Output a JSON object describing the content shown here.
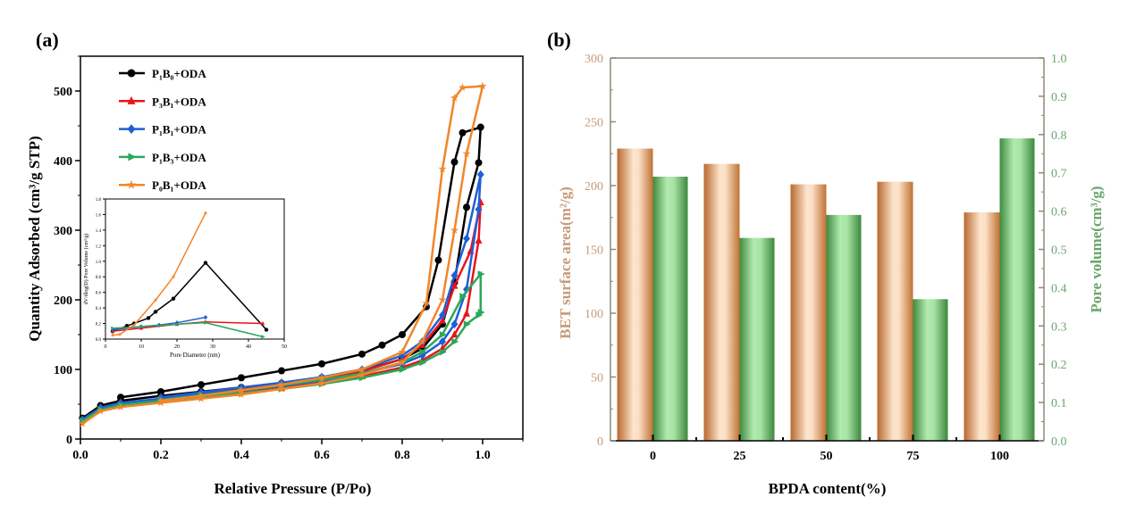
{
  "chart_data": [
    {
      "panel_label": "(a)",
      "type": "line",
      "xlabel": "Relative Pressure (P/Po)",
      "ylabel": "Quantity Adsorbed (cm³/g STP)",
      "xlim": [
        0,
        1.1
      ],
      "ylim": [
        0,
        550
      ],
      "xticks": [
        "0.0",
        "0.2",
        "0.4",
        "0.6",
        "0.8",
        "1.0"
      ],
      "yticks": [
        "0",
        "100",
        "200",
        "300",
        "400",
        "500"
      ],
      "legend_position": "top-left",
      "series": [
        {
          "name": "P₁B₀+ODA",
          "color": "#000000",
          "marker": "circle",
          "x": [
            0.005,
            0.05,
            0.1,
            0.2,
            0.3,
            0.4,
            0.5,
            0.6,
            0.7,
            0.8,
            0.85,
            0.9,
            0.93,
            0.96,
            0.99,
            0.995,
            0.95,
            0.93,
            0.89,
            0.86,
            0.8,
            0.75,
            0.7,
            0.6,
            0.5,
            0.4,
            0.3,
            0.2,
            0.1
          ],
          "y": [
            30,
            48,
            55,
            62,
            68,
            74,
            80,
            88,
            98,
            115,
            130,
            165,
            225,
            333,
            397,
            448,
            440,
            398,
            257,
            190,
            150,
            135,
            122,
            108,
            98,
            88,
            78,
            68,
            60
          ]
        },
        {
          "name": "P₃B₁+ODA",
          "color": "#e8141c",
          "marker": "triangle-up",
          "x": [
            0.005,
            0.05,
            0.1,
            0.2,
            0.3,
            0.4,
            0.5,
            0.6,
            0.7,
            0.8,
            0.85,
            0.9,
            0.93,
            0.96,
            0.99,
            0.995,
            0.97,
            0.93,
            0.9,
            0.85,
            0.8,
            0.7,
            0.6,
            0.5,
            0.4,
            0.3,
            0.2
          ],
          "y": [
            27,
            43,
            50,
            56,
            62,
            67,
            73,
            81,
            90,
            103,
            113,
            130,
            150,
            180,
            285,
            340,
            270,
            220,
            170,
            135,
            115,
            97,
            87,
            79,
            72,
            65,
            58
          ]
        },
        {
          "name": "P₁B₁+ODA",
          "color": "#1f5fd6",
          "marker": "diamond",
          "x": [
            0.005,
            0.05,
            0.1,
            0.2,
            0.3,
            0.4,
            0.5,
            0.6,
            0.7,
            0.8,
            0.85,
            0.9,
            0.93,
            0.96,
            0.99,
            0.995,
            0.96,
            0.93,
            0.9,
            0.85,
            0.8,
            0.7,
            0.6,
            0.5,
            0.4,
            0.3,
            0.2
          ],
          "y": [
            28,
            45,
            52,
            58,
            64,
            70,
            76,
            84,
            94,
            108,
            120,
            140,
            165,
            215,
            330,
            380,
            288,
            235,
            178,
            140,
            120,
            100,
            89,
            81,
            74,
            67,
            60
          ]
        },
        {
          "name": "P₁B₃+ODA",
          "color": "#2aa85a",
          "marker": "triangle-right",
          "x": [
            0.005,
            0.05,
            0.1,
            0.2,
            0.3,
            0.4,
            0.5,
            0.6,
            0.7,
            0.8,
            0.85,
            0.9,
            0.93,
            0.96,
            0.99,
            0.995,
            0.995,
            0.95,
            0.9,
            0.85,
            0.8,
            0.7,
            0.6,
            0.5,
            0.4,
            0.3,
            0.2
          ],
          "y": [
            26,
            42,
            49,
            55,
            61,
            66,
            72,
            79,
            88,
            100,
            110,
            125,
            140,
            165,
            178,
            182,
            237,
            205,
            150,
            125,
            110,
            94,
            85,
            77,
            70,
            63,
            56
          ]
        },
        {
          "name": "P₀B₁+ODA",
          "color": "#f0862a",
          "marker": "star",
          "x": [
            0.005,
            0.05,
            0.1,
            0.2,
            0.3,
            0.4,
            0.5,
            0.6,
            0.7,
            0.8,
            0.85,
            0.9,
            0.93,
            0.96,
            1.0,
            0.95,
            0.93,
            0.9,
            0.86,
            0.8,
            0.7,
            0.6,
            0.5,
            0.4,
            0.3,
            0.2
          ],
          "y": [
            22,
            40,
            46,
            52,
            58,
            64,
            72,
            80,
            92,
            110,
            140,
            200,
            300,
            410,
            507,
            505,
            490,
            388,
            195,
            125,
            100,
            88,
            78,
            70,
            62,
            55
          ]
        }
      ],
      "inset": {
        "xlabel": "Pore Diameter (nm)",
        "ylabel": "dV/dlog(D) Pore Volume (cm³/g)",
        "xlim": [
          0,
          50
        ],
        "ylim": [
          0,
          1.8
        ],
        "xticks": [
          "0",
          "10",
          "20",
          "30",
          "40",
          "50"
        ],
        "yticks": [
          "0.0",
          "0.2",
          "0.4",
          "0.6",
          "0.8",
          "1.0",
          "1.2",
          "1.4",
          "1.6",
          "1.8"
        ],
        "series": [
          {
            "color": "#000000",
            "marker": "circle",
            "x": [
              2,
              6,
              8,
              12,
              14,
              19,
              28,
              45
            ],
            "y": [
              0.1,
              0.17,
              0.2,
              0.27,
              0.35,
              0.52,
              0.98,
              0.12
            ]
          },
          {
            "color": "#e8141c",
            "marker": "triangle-up",
            "x": [
              2,
              10,
              20,
              28,
              44
            ],
            "y": [
              0.1,
              0.14,
              0.19,
              0.22,
              0.2
            ]
          },
          {
            "color": "#1f5fd6",
            "marker": "diamond",
            "x": [
              2,
              10,
              15,
              20,
              28
            ],
            "y": [
              0.12,
              0.16,
              0.18,
              0.21,
              0.28
            ]
          },
          {
            "color": "#2aa85a",
            "marker": "triangle-right",
            "x": [
              2,
              10,
              20,
              28,
              44
            ],
            "y": [
              0.14,
              0.16,
              0.19,
              0.21,
              0.03
            ]
          },
          {
            "color": "#f0862a",
            "marker": "star",
            "x": [
              2,
              4,
              8,
              14,
              19,
              28
            ],
            "y": [
              0.05,
              0.06,
              0.18,
              0.5,
              0.8,
              1.62
            ]
          }
        ]
      }
    },
    {
      "panel_label": "(b)",
      "type": "bar",
      "xlabel": "BPDA content(%)",
      "ylabel": "BET surface area(m²/g)",
      "y2label": "Pore volume(cm³/g)",
      "categories": [
        "0",
        "25",
        "50",
        "75",
        "100"
      ],
      "ylim": [
        0,
        300
      ],
      "y2lim": [
        0,
        1.0
      ],
      "yticks": [
        "0",
        "50",
        "100",
        "150",
        "200",
        "250",
        "300"
      ],
      "y2ticks": [
        "0.0",
        "0.1",
        "0.2",
        "0.3",
        "0.4",
        "0.5",
        "0.6",
        "0.7",
        "0.8",
        "0.9",
        "1.0"
      ],
      "series": [
        {
          "axis": "left",
          "color": "#c8773e",
          "values": [
            229,
            217,
            201,
            203,
            179
          ]
        },
        {
          "axis": "right",
          "color": "#4f9a4f",
          "values": [
            0.69,
            0.53,
            0.59,
            0.37,
            0.79
          ]
        }
      ],
      "left_axis_color": "#c89a78",
      "right_axis_color": "#6aa56a",
      "frame_color": "#8a8a78"
    }
  ]
}
